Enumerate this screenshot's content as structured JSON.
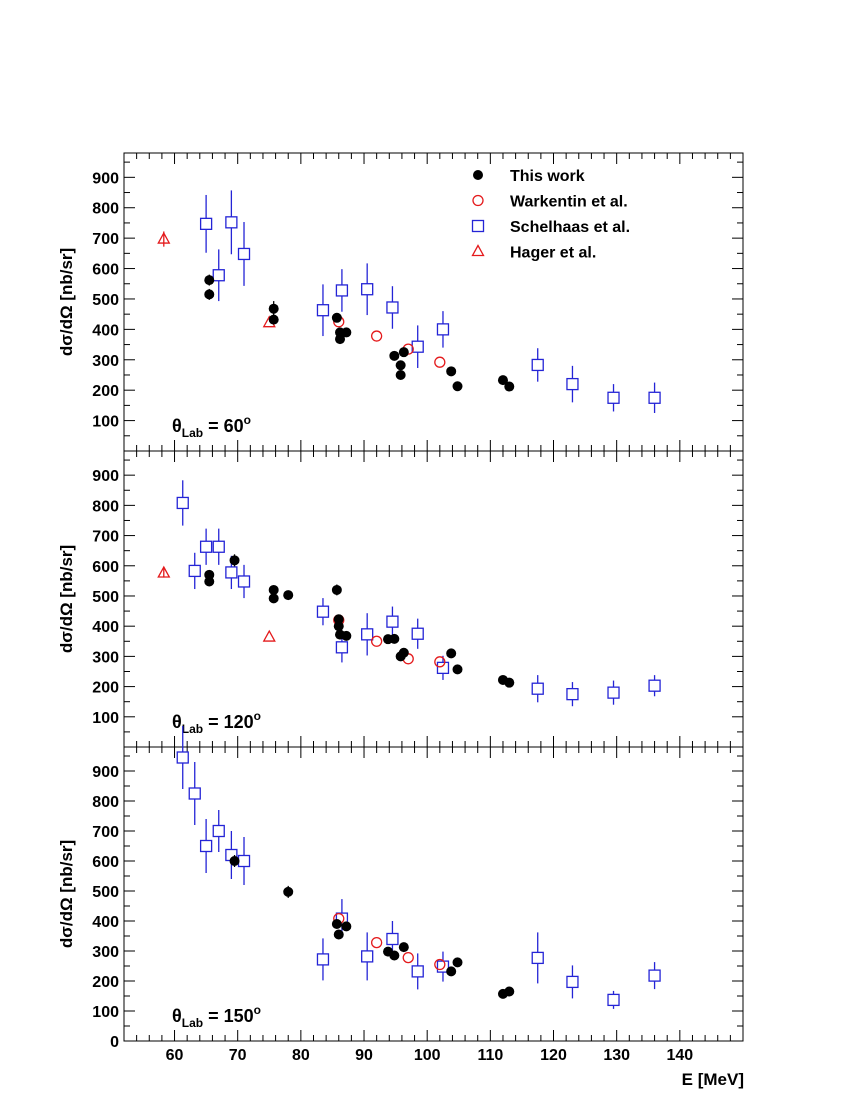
{
  "chart_data": {
    "type": "scatter",
    "xlabel": "E [MeV]",
    "xlim": [
      52,
      150
    ],
    "x_ticks": [
      60,
      70,
      80,
      90,
      100,
      110,
      120,
      130,
      140
    ],
    "legend": {
      "placement": "top-right",
      "entries": [
        {
          "series": "this_work",
          "label": "This work"
        },
        {
          "series": "warkentin",
          "label": "Warkentin et al."
        },
        {
          "series": "schelhaas",
          "label": "Schelhaas et al."
        },
        {
          "series": "hager",
          "label": "Hager et al."
        }
      ]
    },
    "styles": {
      "this_work": {
        "marker": "filled-circle",
        "color": "#000000"
      },
      "warkentin": {
        "marker": "open-circle",
        "color": "#e41a1c"
      },
      "schelhaas": {
        "marker": "open-square",
        "color": "#2424d6"
      },
      "hager": {
        "marker": "open-triangle",
        "color": "#e41a1c"
      }
    },
    "panels": [
      {
        "label_main": "θ",
        "label_sub": "Lab",
        "label_value": " = 60",
        "label_sup": "o",
        "ylabel": "dσ/dΩ [nb/sr]",
        "ylim": [
          0,
          980
        ],
        "y_ticks": [
          100,
          200,
          300,
          400,
          500,
          600,
          700,
          800,
          900
        ],
        "series": {
          "this_work": [
            {
              "x": 65.5,
              "y": 515,
              "err": 18
            },
            {
              "x": 65.5,
              "y": 562,
              "err": 18
            },
            {
              "x": 75.7,
              "y": 432,
              "err": 15
            },
            {
              "x": 75.7,
              "y": 468,
              "err": 25
            },
            {
              "x": 85.7,
              "y": 438,
              "err": 12
            },
            {
              "x": 86.2,
              "y": 368,
              "err": 12
            },
            {
              "x": 86.2,
              "y": 390,
              "err": 12
            },
            {
              "x": 87.2,
              "y": 390,
              "err": 12
            },
            {
              "x": 94.8,
              "y": 313,
              "err": 12
            },
            {
              "x": 95.8,
              "y": 250,
              "err": 12
            },
            {
              "x": 95.8,
              "y": 282,
              "err": 12
            },
            {
              "x": 96.3,
              "y": 325,
              "err": 12
            },
            {
              "x": 103.8,
              "y": 262,
              "err": 12
            },
            {
              "x": 104.8,
              "y": 213,
              "err": 10
            },
            {
              "x": 112.0,
              "y": 233,
              "err": 10
            },
            {
              "x": 113.0,
              "y": 212,
              "err": 10
            }
          ],
          "warkentin": [
            {
              "x": 86.0,
              "y": 425,
              "err": 0
            },
            {
              "x": 92.0,
              "y": 378,
              "err": 0
            },
            {
              "x": 97.0,
              "y": 335,
              "err": 0
            },
            {
              "x": 102.0,
              "y": 292,
              "err": 0
            }
          ],
          "schelhaas": [
            {
              "x": 65.0,
              "y": 747,
              "err": 95
            },
            {
              "x": 67.0,
              "y": 578,
              "err": 85
            },
            {
              "x": 69.0,
              "y": 752,
              "err": 105
            },
            {
              "x": 71.0,
              "y": 648,
              "err": 105
            },
            {
              "x": 83.5,
              "y": 463,
              "err": 85
            },
            {
              "x": 86.5,
              "y": 528,
              "err": 70
            },
            {
              "x": 90.5,
              "y": 532,
              "err": 85
            },
            {
              "x": 94.5,
              "y": 472,
              "err": 70
            },
            {
              "x": 98.5,
              "y": 343,
              "err": 70
            },
            {
              "x": 102.5,
              "y": 400,
              "err": 60
            },
            {
              "x": 117.5,
              "y": 283,
              "err": 55
            },
            {
              "x": 123.0,
              "y": 220,
              "err": 60
            },
            {
              "x": 129.5,
              "y": 175,
              "err": 45
            },
            {
              "x": 136.0,
              "y": 175,
              "err": 50
            }
          ],
          "hager": [
            {
              "x": 58.3,
              "y": 697,
              "err": 25
            },
            {
              "x": 75.0,
              "y": 422,
              "err": 0
            }
          ]
        }
      },
      {
        "label_main": "θ",
        "label_sub": "Lab",
        "label_value": " = 120",
        "label_sup": "o",
        "ylabel": "dσ/dΩ [nb/sr]",
        "ylim": [
          0,
          980
        ],
        "y_ticks": [
          100,
          200,
          300,
          400,
          500,
          600,
          700,
          800,
          900
        ],
        "series": {
          "this_work": [
            {
              "x": 65.5,
              "y": 548,
              "err": 15
            },
            {
              "x": 65.5,
              "y": 570,
              "err": 15
            },
            {
              "x": 69.5,
              "y": 618,
              "err": 20
            },
            {
              "x": 75.7,
              "y": 492,
              "err": 12
            },
            {
              "x": 75.7,
              "y": 520,
              "err": 12
            },
            {
              "x": 78.0,
              "y": 503,
              "err": 12
            },
            {
              "x": 85.7,
              "y": 520,
              "err": 18
            },
            {
              "x": 86.0,
              "y": 423,
              "err": 12
            },
            {
              "x": 86.0,
              "y": 400,
              "err": 12
            },
            {
              "x": 86.2,
              "y": 372,
              "err": 12
            },
            {
              "x": 87.2,
              "y": 368,
              "err": 12
            },
            {
              "x": 93.8,
              "y": 357,
              "err": 12
            },
            {
              "x": 94.8,
              "y": 358,
              "err": 12
            },
            {
              "x": 95.8,
              "y": 300,
              "err": 12
            },
            {
              "x": 96.3,
              "y": 312,
              "err": 12
            },
            {
              "x": 103.8,
              "y": 310,
              "err": 12
            },
            {
              "x": 104.8,
              "y": 257,
              "err": 10
            },
            {
              "x": 112.0,
              "y": 222,
              "err": 10
            },
            {
              "x": 113.0,
              "y": 213,
              "err": 10
            }
          ],
          "warkentin": [
            {
              "x": 86.0,
              "y": 420,
              "err": 0
            },
            {
              "x": 92.0,
              "y": 350,
              "err": 0
            },
            {
              "x": 97.0,
              "y": 292,
              "err": 0
            },
            {
              "x": 102.0,
              "y": 282,
              "err": 0
            }
          ],
          "schelhaas": [
            {
              "x": 61.3,
              "y": 808,
              "err": 75
            },
            {
              "x": 63.2,
              "y": 583,
              "err": 60
            },
            {
              "x": 65.0,
              "y": 663,
              "err": 60
            },
            {
              "x": 67.0,
              "y": 663,
              "err": 60
            },
            {
              "x": 69.0,
              "y": 578,
              "err": 55
            },
            {
              "x": 71.0,
              "y": 548,
              "err": 55
            },
            {
              "x": 83.5,
              "y": 448,
              "err": 45
            },
            {
              "x": 86.5,
              "y": 330,
              "err": 50
            },
            {
              "x": 90.5,
              "y": 373,
              "err": 70
            },
            {
              "x": 94.5,
              "y": 415,
              "err": 50
            },
            {
              "x": 98.5,
              "y": 375,
              "err": 50
            },
            {
              "x": 102.5,
              "y": 262,
              "err": 40
            },
            {
              "x": 117.5,
              "y": 193,
              "err": 45
            },
            {
              "x": 123.0,
              "y": 175,
              "err": 40
            },
            {
              "x": 129.5,
              "y": 180,
              "err": 40
            },
            {
              "x": 136.0,
              "y": 203,
              "err": 35
            }
          ],
          "hager": [
            {
              "x": 58.3,
              "y": 576,
              "err": 15
            },
            {
              "x": 75.0,
              "y": 364,
              "err": 0
            }
          ]
        }
      },
      {
        "label_main": "θ",
        "label_sub": "Lab",
        "label_value": " = 150",
        "label_sup": "o",
        "ylabel": "dσ/dΩ [nb/sr]",
        "ylim": [
          0,
          980
        ],
        "y_ticks": [
          0,
          100,
          200,
          300,
          400,
          500,
          600,
          700,
          800,
          900
        ],
        "series": {
          "this_work": [
            {
              "x": 69.5,
              "y": 600,
              "err": 20
            },
            {
              "x": 78.0,
              "y": 497,
              "err": 20
            },
            {
              "x": 85.7,
              "y": 390,
              "err": 15
            },
            {
              "x": 86.0,
              "y": 355,
              "err": 15
            },
            {
              "x": 87.2,
              "y": 382,
              "err": 12
            },
            {
              "x": 93.8,
              "y": 298,
              "err": 12
            },
            {
              "x": 94.8,
              "y": 285,
              "err": 12
            },
            {
              "x": 96.3,
              "y": 313,
              "err": 12
            },
            {
              "x": 103.8,
              "y": 232,
              "err": 12
            },
            {
              "x": 104.8,
              "y": 262,
              "err": 12
            },
            {
              "x": 112.0,
              "y": 157,
              "err": 10
            },
            {
              "x": 113.0,
              "y": 165,
              "err": 10
            }
          ],
          "warkentin": [
            {
              "x": 86.0,
              "y": 408,
              "err": 0
            },
            {
              "x": 92.0,
              "y": 328,
              "err": 0
            },
            {
              "x": 97.0,
              "y": 278,
              "err": 0
            },
            {
              "x": 102.0,
              "y": 255,
              "err": 0
            }
          ],
          "schelhaas": [
            {
              "x": 61.3,
              "y": 945,
              "err": 105
            },
            {
              "x": 63.2,
              "y": 825,
              "err": 105
            },
            {
              "x": 65.0,
              "y": 650,
              "err": 90
            },
            {
              "x": 67.0,
              "y": 700,
              "err": 70
            },
            {
              "x": 69.0,
              "y": 620,
              "err": 80
            },
            {
              "x": 71.0,
              "y": 600,
              "err": 80
            },
            {
              "x": 83.5,
              "y": 272,
              "err": 70
            },
            {
              "x": 86.5,
              "y": 408,
              "err": 65
            },
            {
              "x": 90.5,
              "y": 282,
              "err": 80
            },
            {
              "x": 94.5,
              "y": 340,
              "err": 60
            },
            {
              "x": 98.5,
              "y": 232,
              "err": 60
            },
            {
              "x": 102.5,
              "y": 248,
              "err": 50
            },
            {
              "x": 117.5,
              "y": 277,
              "err": 85
            },
            {
              "x": 123.0,
              "y": 197,
              "err": 55
            },
            {
              "x": 129.5,
              "y": 137,
              "err": 30
            },
            {
              "x": 136.0,
              "y": 218,
              "err": 45
            }
          ],
          "hager": []
        }
      }
    ]
  }
}
